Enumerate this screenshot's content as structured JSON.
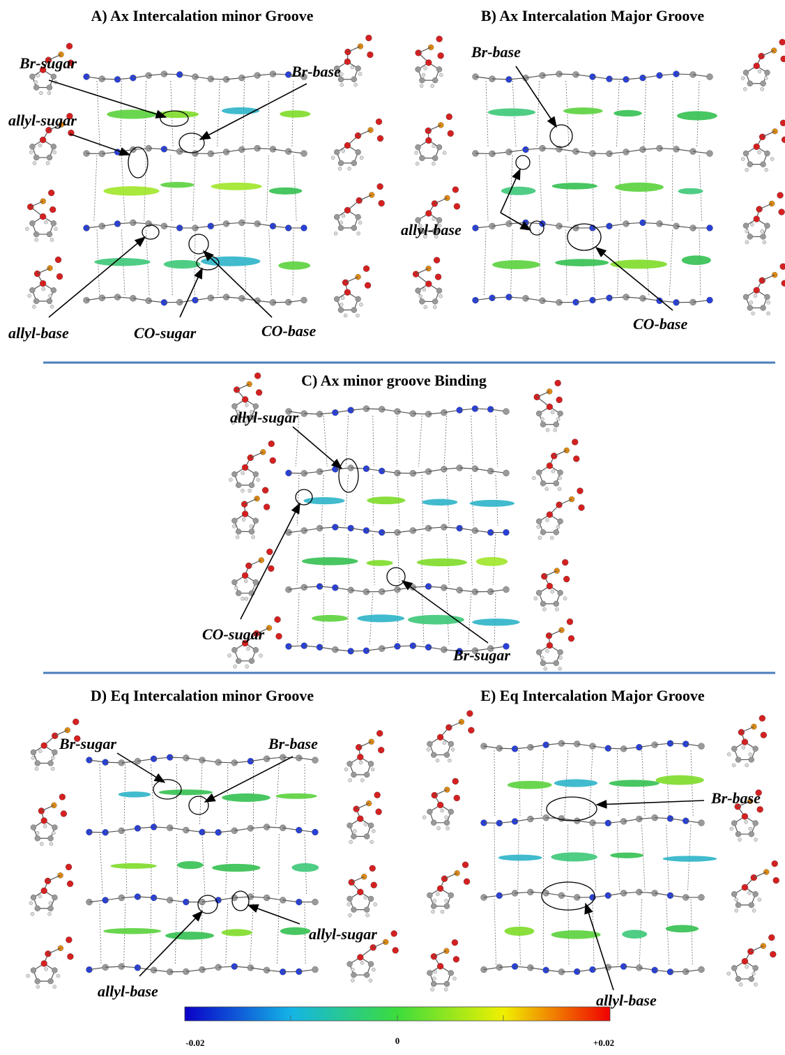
{
  "panels": [
    {
      "title": "A) Ax Intercalation minor Groove",
      "labels": [
        "Br-sugar",
        "allyl-sugar",
        "Br-base",
        "allyl-base",
        "CO-sugar",
        "CO-base"
      ]
    },
    {
      "title": "B) Ax Intercalation Major Groove",
      "labels": [
        "Br-base",
        "allyl-base",
        "CO-base"
      ]
    },
    {
      "title": "C) Ax minor groove Binding",
      "labels": [
        "allyl-sugar",
        "CO-sugar",
        "Br-sugar"
      ]
    },
    {
      "title": "D) Eq Intercalation minor Groove",
      "labels": [
        "Br-sugar",
        "Br-base",
        "allyl-sugar",
        "allyl-base"
      ]
    },
    {
      "title": "E) Eq Intercalation Major Groove",
      "labels": [
        "Br-base",
        "allyl-base"
      ]
    }
  ],
  "colorbar": {
    "ticks": [
      "-0.02",
      "0",
      "+0.02"
    ]
  }
}
